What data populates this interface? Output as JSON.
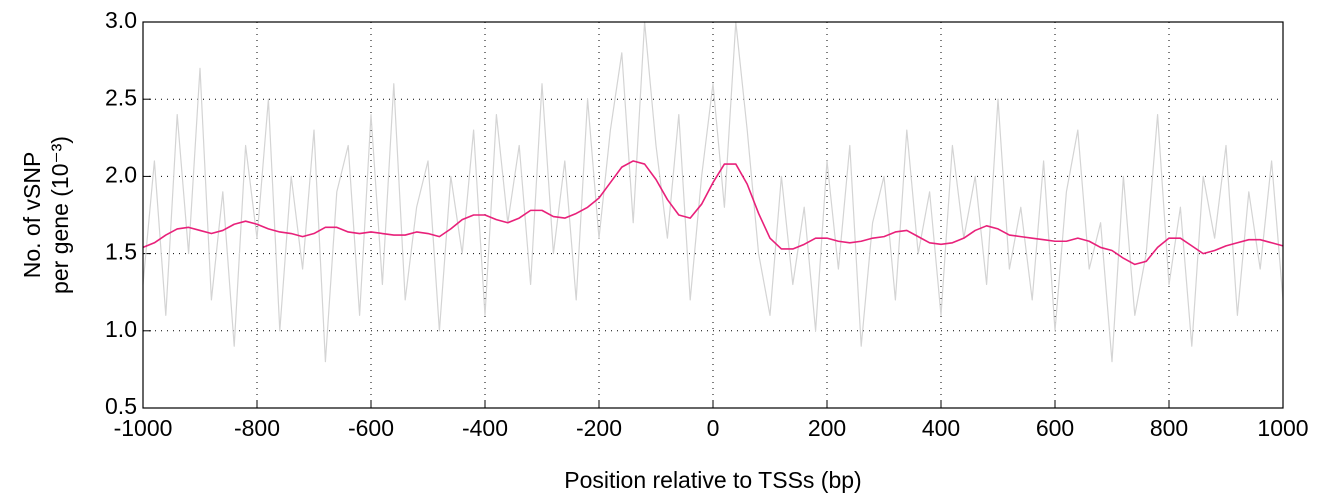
{
  "chart_data": {
    "type": "line",
    "x_label": "Position relative to TSSs (bp)",
    "y_label": [
      "No. of vSNP",
      "per gene (10⁻³)"
    ],
    "xlim": [
      -1000,
      1000
    ],
    "xticks": [
      -1000,
      -800,
      -600,
      -400,
      -200,
      0,
      200,
      400,
      600,
      800,
      1000
    ],
    "ylim": [
      0.5,
      3
    ],
    "yticks": [
      0.5,
      {
        "value": 1,
        "label": "1.0"
      },
      1.5,
      {
        "value": 2,
        "label": "2.0"
      },
      2.5,
      {
        "value": 3,
        "label": "3.0"
      }
    ],
    "grid": true,
    "x": [
      -1000,
      -980,
      -960,
      -940,
      -920,
      -900,
      -880,
      -860,
      -840,
      -820,
      -800,
      -780,
      -760,
      -740,
      -720,
      -700,
      -680,
      -660,
      -640,
      -620,
      -600,
      -580,
      -560,
      -540,
      -520,
      -500,
      -480,
      -460,
      -440,
      -420,
      -400,
      -380,
      -360,
      -340,
      -320,
      -300,
      -280,
      -260,
      -240,
      -220,
      -200,
      -180,
      -160,
      -140,
      -120,
      -100,
      -80,
      -60,
      -40,
      -20,
      0,
      20,
      40,
      60,
      80,
      100,
      120,
      140,
      160,
      180,
      200,
      220,
      240,
      260,
      280,
      300,
      320,
      340,
      360,
      380,
      400,
      420,
      440,
      460,
      480,
      500,
      520,
      540,
      560,
      580,
      600,
      620,
      640,
      660,
      680,
      700,
      720,
      740,
      760,
      780,
      800,
      820,
      840,
      860,
      880,
      900,
      920,
      940,
      960,
      980,
      1000
    ],
    "series": [
      {
        "color": "#d4d4d4",
        "values": [
          1.3,
          2.1,
          1.1,
          2.4,
          1.5,
          2.7,
          1.2,
          1.9,
          0.9,
          2.2,
          1.6,
          2.5,
          1.0,
          2.0,
          1.4,
          2.3,
          0.8,
          1.9,
          2.2,
          1.1,
          2.4,
          1.3,
          2.6,
          1.2,
          1.8,
          2.1,
          1.0,
          2.0,
          1.5,
          2.3,
          1.1,
          2.4,
          1.7,
          2.2,
          1.3,
          2.6,
          1.5,
          2.1,
          1.2,
          2.5,
          1.6,
          2.3,
          2.8,
          1.7,
          3.0,
          2.2,
          1.6,
          2.4,
          1.2,
          2.0,
          2.6,
          1.8,
          3.0,
          2.3,
          1.5,
          1.1,
          2.0,
          1.3,
          1.8,
          1.0,
          2.1,
          1.4,
          2.2,
          0.9,
          1.7,
          2.0,
          1.2,
          2.3,
          1.5,
          1.9,
          1.1,
          2.2,
          1.6,
          2.0,
          1.3,
          2.5,
          1.4,
          1.8,
          1.2,
          2.1,
          1.0,
          1.9,
          2.3,
          1.4,
          1.7,
          0.8,
          2.0,
          1.1,
          1.5,
          2.4,
          1.3,
          1.8,
          0.9,
          2.0,
          1.6,
          2.2,
          1.1,
          1.9,
          1.4,
          2.1,
          1.2
        ]
      },
      {
        "color": "#e8217a",
        "values": [
          1.54,
          1.57,
          1.62,
          1.66,
          1.67,
          1.65,
          1.63,
          1.65,
          1.69,
          1.71,
          1.69,
          1.66,
          1.64,
          1.63,
          1.61,
          1.63,
          1.67,
          1.67,
          1.64,
          1.63,
          1.64,
          1.63,
          1.62,
          1.62,
          1.64,
          1.63,
          1.61,
          1.66,
          1.72,
          1.75,
          1.75,
          1.72,
          1.7,
          1.73,
          1.78,
          1.78,
          1.74,
          1.73,
          1.76,
          1.8,
          1.86,
          1.96,
          2.06,
          2.1,
          2.08,
          1.98,
          1.85,
          1.75,
          1.73,
          1.82,
          1.96,
          2.08,
          2.08,
          1.95,
          1.76,
          1.6,
          1.53,
          1.53,
          1.56,
          1.6,
          1.6,
          1.58,
          1.57,
          1.58,
          1.6,
          1.61,
          1.64,
          1.65,
          1.61,
          1.57,
          1.56,
          1.57,
          1.6,
          1.65,
          1.68,
          1.66,
          1.62,
          1.61,
          1.6,
          1.59,
          1.58,
          1.58,
          1.6,
          1.58,
          1.54,
          1.52,
          1.47,
          1.43,
          1.45,
          1.54,
          1.6,
          1.6,
          1.55,
          1.5,
          1.52,
          1.55,
          1.57,
          1.59,
          1.59,
          1.57,
          1.55
        ]
      }
    ]
  }
}
